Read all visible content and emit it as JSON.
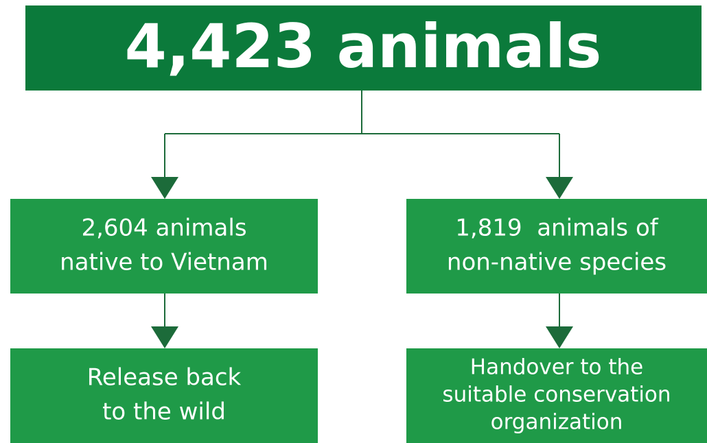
{
  "header": {
    "title": "4,423 animals"
  },
  "nodes": [
    {
      "lines": [
        "2,604 animals",
        "native to Vietnam"
      ]
    },
    {
      "lines": [
        "1,819  animals of",
        "non-native species"
      ]
    },
    {
      "lines": [
        "Release back",
        "to the wild"
      ]
    },
    {
      "lines": [
        "Handover to the",
        "suitable conservation",
        "organization"
      ]
    }
  ]
}
